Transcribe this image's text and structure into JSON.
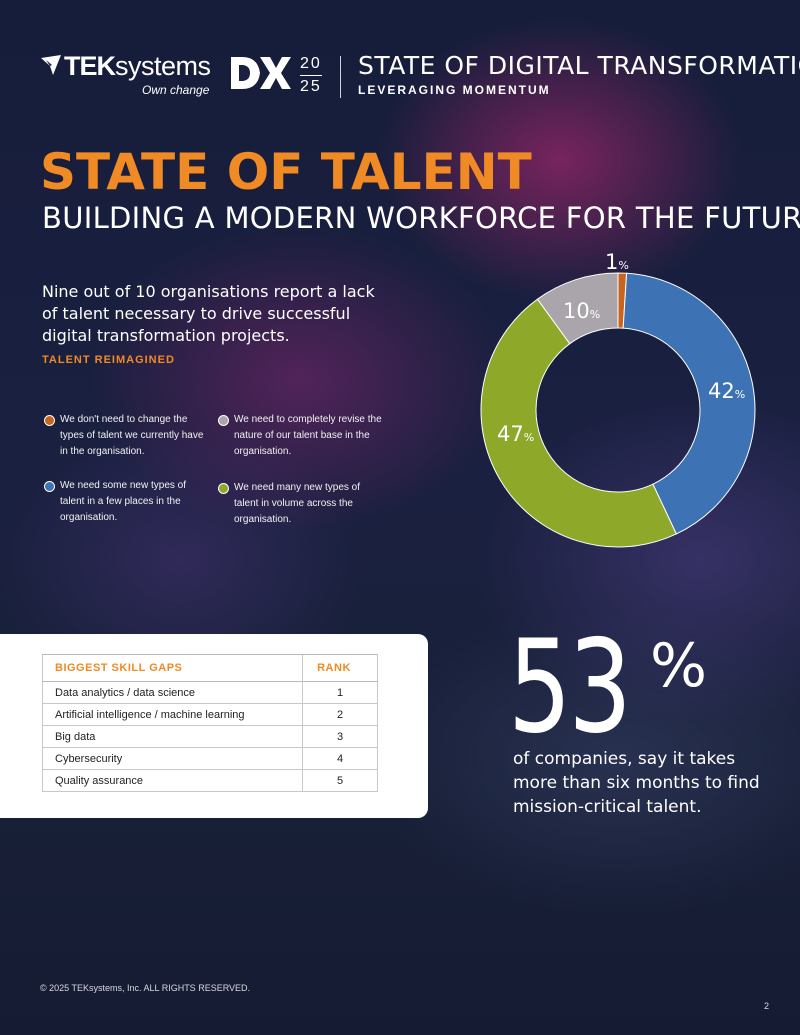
{
  "header": {
    "logo_brand_bold": "TEK",
    "logo_brand_light": "systems",
    "logo_tagline": "Own change",
    "dx_year_top": "20",
    "dx_year_bottom": "25",
    "report_title": "STATE OF DIGITAL TRANSFORMATION",
    "report_subtitle": "LEVERAGING MOMENTUM"
  },
  "page": {
    "title": "STATE OF TALENT",
    "subtitle": "BUILDING A MODERN WORKFORCE FOR THE FUTURE",
    "lead": "Nine out of 10 organisations report a lack of talent necessary to drive successful digital transformation projects.",
    "eyebrow": "TALENT REIMAGINED"
  },
  "legend": [
    {
      "text": "We don't need to change the types of talent we currently have in the organisation.",
      "color": "#c8641e"
    },
    {
      "text": "We need to completely revise the nature of our talent base in the organisation.",
      "color": "#a9a5aa"
    },
    {
      "text": "We need some new types of talent in a few places in the organisation.",
      "color": "#3d72b4"
    },
    {
      "text": "We need many new types of talent in volume across the organisation.",
      "color": "#8ea82a"
    }
  ],
  "chart_data": {
    "type": "pie",
    "donut": true,
    "categories": [
      "We don't need to change the types of talent we currently have in the organisation.",
      "We need some new types of talent in a few places in the organisation.",
      "We need many new types of talent in volume across the organisation.",
      "We need to completely revise the nature of our talent base in the organisation."
    ],
    "values": [
      1,
      42,
      47,
      10
    ],
    "labels": [
      "1",
      "42",
      "47",
      "10"
    ],
    "unit": "%",
    "colors": [
      "#c8641e",
      "#3d72b4",
      "#8ea82a",
      "#a9a5aa"
    ],
    "legend_placement": "left"
  },
  "skills_table": {
    "headers": [
      "BIGGEST SKILL GAPS",
      "RANK"
    ],
    "rows": [
      [
        "Data analytics / data science",
        "1"
      ],
      [
        "Artificial intelligence / machine learning",
        "2"
      ],
      [
        "Big data",
        "3"
      ],
      [
        "Cybersecurity",
        "4"
      ],
      [
        "Quality assurance",
        "5"
      ]
    ]
  },
  "stat": {
    "number": "53",
    "symbol": "%",
    "text": "of companies, say it takes more than six months to find mission-critical talent."
  },
  "footer": {
    "copyright": "© 2025 TEKsystems, Inc. ALL RIGHTS RESERVED.",
    "page_number": "2"
  },
  "colors": {
    "accent": "#f08a24"
  }
}
